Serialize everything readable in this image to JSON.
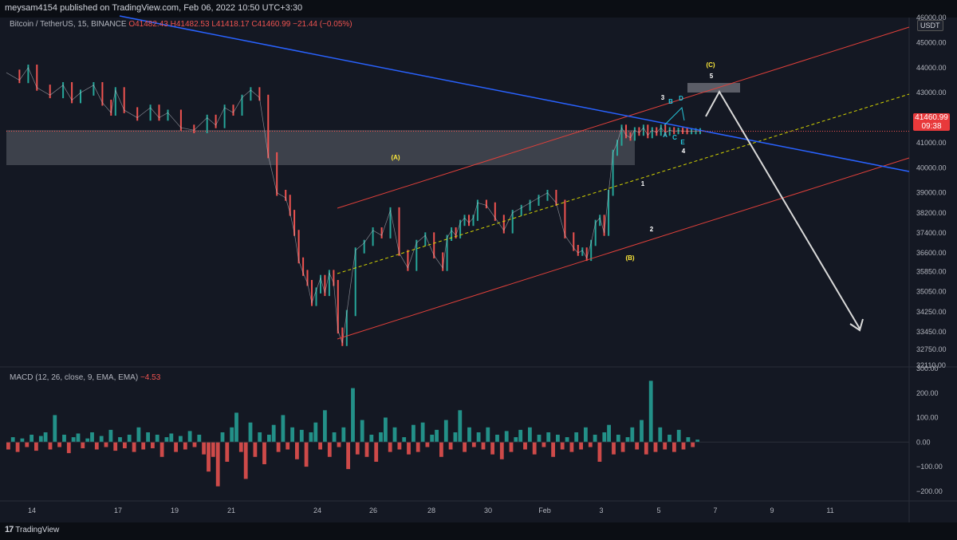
{
  "header": {
    "publish_info": "meysam4154 published on TradingView.com, Feb 06, 2022 10:50 UTC+3:30"
  },
  "symbol": {
    "name": "Bitcoin / TetherUS, 15, BINANCE",
    "open": "O41482.43",
    "high": "H41482.53",
    "low": "L41418.17",
    "close": "C41460.99",
    "change": "−21.44 (−0.05%)"
  },
  "price_axis": {
    "currency": "USDT",
    "last_price": "41460.99",
    "countdown": "09:38"
  },
  "macd": {
    "label": "MACD (12, 26, close, 9, EMA, EMA)",
    "value": "−4.53"
  },
  "footer": {
    "brand": "TradingView"
  },
  "chart_data": [
    {
      "type": "line",
      "title": "Bitcoin / TetherUS, 15, BINANCE",
      "ylim": [
        32110,
        46000
      ],
      "y_ticks": [
        46000,
        45000,
        44000,
        43000,
        42000,
        41000,
        40000,
        39000,
        38200,
        37400,
        36600,
        35850,
        35050,
        34250,
        33450,
        32750,
        32110
      ],
      "x_ticks": [
        "14",
        "17",
        "19",
        "21",
        "24",
        "26",
        "28",
        "30",
        "Feb",
        "3",
        "5",
        "7",
        "9",
        "11"
      ],
      "series": [
        {
          "x": [
            0,
            3,
            5,
            7,
            10,
            13,
            15,
            17,
            20,
            22,
            24,
            25,
            27,
            30,
            33,
            35,
            37,
            40,
            43,
            46,
            48,
            50,
            52,
            54,
            56,
            58,
            60,
            62,
            64,
            65,
            66,
            67,
            68,
            69,
            70,
            71,
            72,
            73,
            74,
            75,
            76,
            77,
            78,
            80,
            82,
            84,
            86,
            88,
            90,
            92,
            94,
            96,
            98,
            100,
            101,
            102,
            103,
            104,
            105,
            106,
            107,
            108,
            110,
            112,
            114,
            116,
            118,
            120,
            122,
            124,
            126,
            128,
            130,
            131,
            132,
            133,
            134,
            135,
            136,
            137,
            138,
            139,
            140,
            141,
            142,
            143,
            144,
            145,
            146,
            147,
            148,
            149,
            150,
            151,
            152,
            153,
            154,
            155,
            156,
            157,
            158,
            159
          ],
          "values": [
            43800,
            43500,
            44000,
            43200,
            42900,
            43300,
            42700,
            43000,
            43300,
            42600,
            42200,
            43100,
            42300,
            42000,
            42400,
            42000,
            42200,
            41600,
            41500,
            42000,
            41700,
            42400,
            42200,
            42800,
            43100,
            42800,
            40500,
            39000,
            38800,
            38200,
            37400,
            36300,
            35800,
            35400,
            34600,
            35100,
            35600,
            35000,
            35800,
            35400,
            33500,
            33000,
            34200,
            36700,
            37000,
            37500,
            37300,
            38300,
            36600,
            36000,
            37000,
            37300,
            36500,
            36000,
            37200,
            37500,
            37300,
            37800,
            38000,
            37800,
            38000,
            38600,
            38500,
            38000,
            37500,
            38200,
            38400,
            38600,
            38800,
            39000,
            38600,
            37300,
            36800,
            36600,
            36700,
            36400,
            37000,
            37800,
            38000,
            37400,
            39000,
            40600,
            41000,
            41600,
            41300,
            41200,
            41500,
            41400,
            41600,
            41300,
            41500,
            41400,
            41600,
            41400,
            41500,
            41460,
            41480,
            41470,
            41460,
            41460,
            41461,
            41461
          ]
        }
      ]
    },
    {
      "type": "bar",
      "title": "MACD (12, 26, close, 9, EMA, EMA)",
      "ylim": [
        -230,
        300
      ],
      "y_ticks": [
        300,
        200,
        100,
        0,
        -100,
        -200
      ],
      "series": [
        {
          "values": [
            -30,
            20,
            -40,
            15,
            -20,
            30,
            -35,
            25,
            40,
            -30,
            110,
            -20,
            30,
            -45,
            20,
            35,
            -25,
            15,
            40,
            -30,
            25,
            -20,
            50,
            -35,
            20,
            -25,
            30,
            -40,
            60,
            -30,
            40,
            -25,
            30,
            -60,
            20,
            35,
            -40,
            25,
            -30,
            45,
            -20,
            30,
            -50,
            -120,
            -60,
            -180,
            40,
            -80,
            60,
            120,
            -40,
            -150,
            80,
            -60,
            40,
            -90,
            30,
            70,
            -40,
            110,
            -30,
            60,
            -70,
            50,
            -100,
            40,
            80,
            -30,
            130,
            -60,
            40,
            -20,
            60,
            -110,
            220,
            -50,
            90,
            -60,
            30,
            -80,
            40,
            100,
            -40,
            60,
            -30,
            20,
            -50,
            70,
            -40,
            80,
            -20,
            30,
            50,
            -60,
            90,
            -30,
            40,
            130,
            -40,
            60,
            -20,
            40,
            -30,
            60,
            -50,
            30,
            -70,
            45,
            -40,
            20,
            50,
            -30,
            60,
            -50,
            30,
            -20,
            40,
            -60,
            30,
            -30,
            20,
            -40,
            40,
            -30,
            60,
            -20,
            30,
            -80,
            40,
            70,
            -50,
            30,
            -40,
            20,
            60,
            -30,
            90,
            -50,
            250,
            -40,
            60,
            -30,
            30,
            -40,
            50,
            -30,
            20,
            -20,
            10
          ]
        }
      ]
    }
  ],
  "annotations": {
    "wave_A": "(A)",
    "wave_B": "(B)",
    "wave_C": "(C)",
    "w1": "1",
    "w2": "2",
    "w3": "3",
    "w4": "4",
    "w5": "5",
    "sub_A": "A",
    "sub_B": "B",
    "sub_C": "C",
    "sub_D": "D",
    "sub_E": "E"
  },
  "colors": {
    "bg": "#141823",
    "up": "#26a69a",
    "down": "#ef5350",
    "channel": "#e0403a",
    "trendline": "#2962ff",
    "midline": "#d4d400",
    "zone": "#9598a1",
    "arrow": "#d9d9d9",
    "wave_label": "#ffeb3b",
    "sub_label": "#26c6da"
  }
}
